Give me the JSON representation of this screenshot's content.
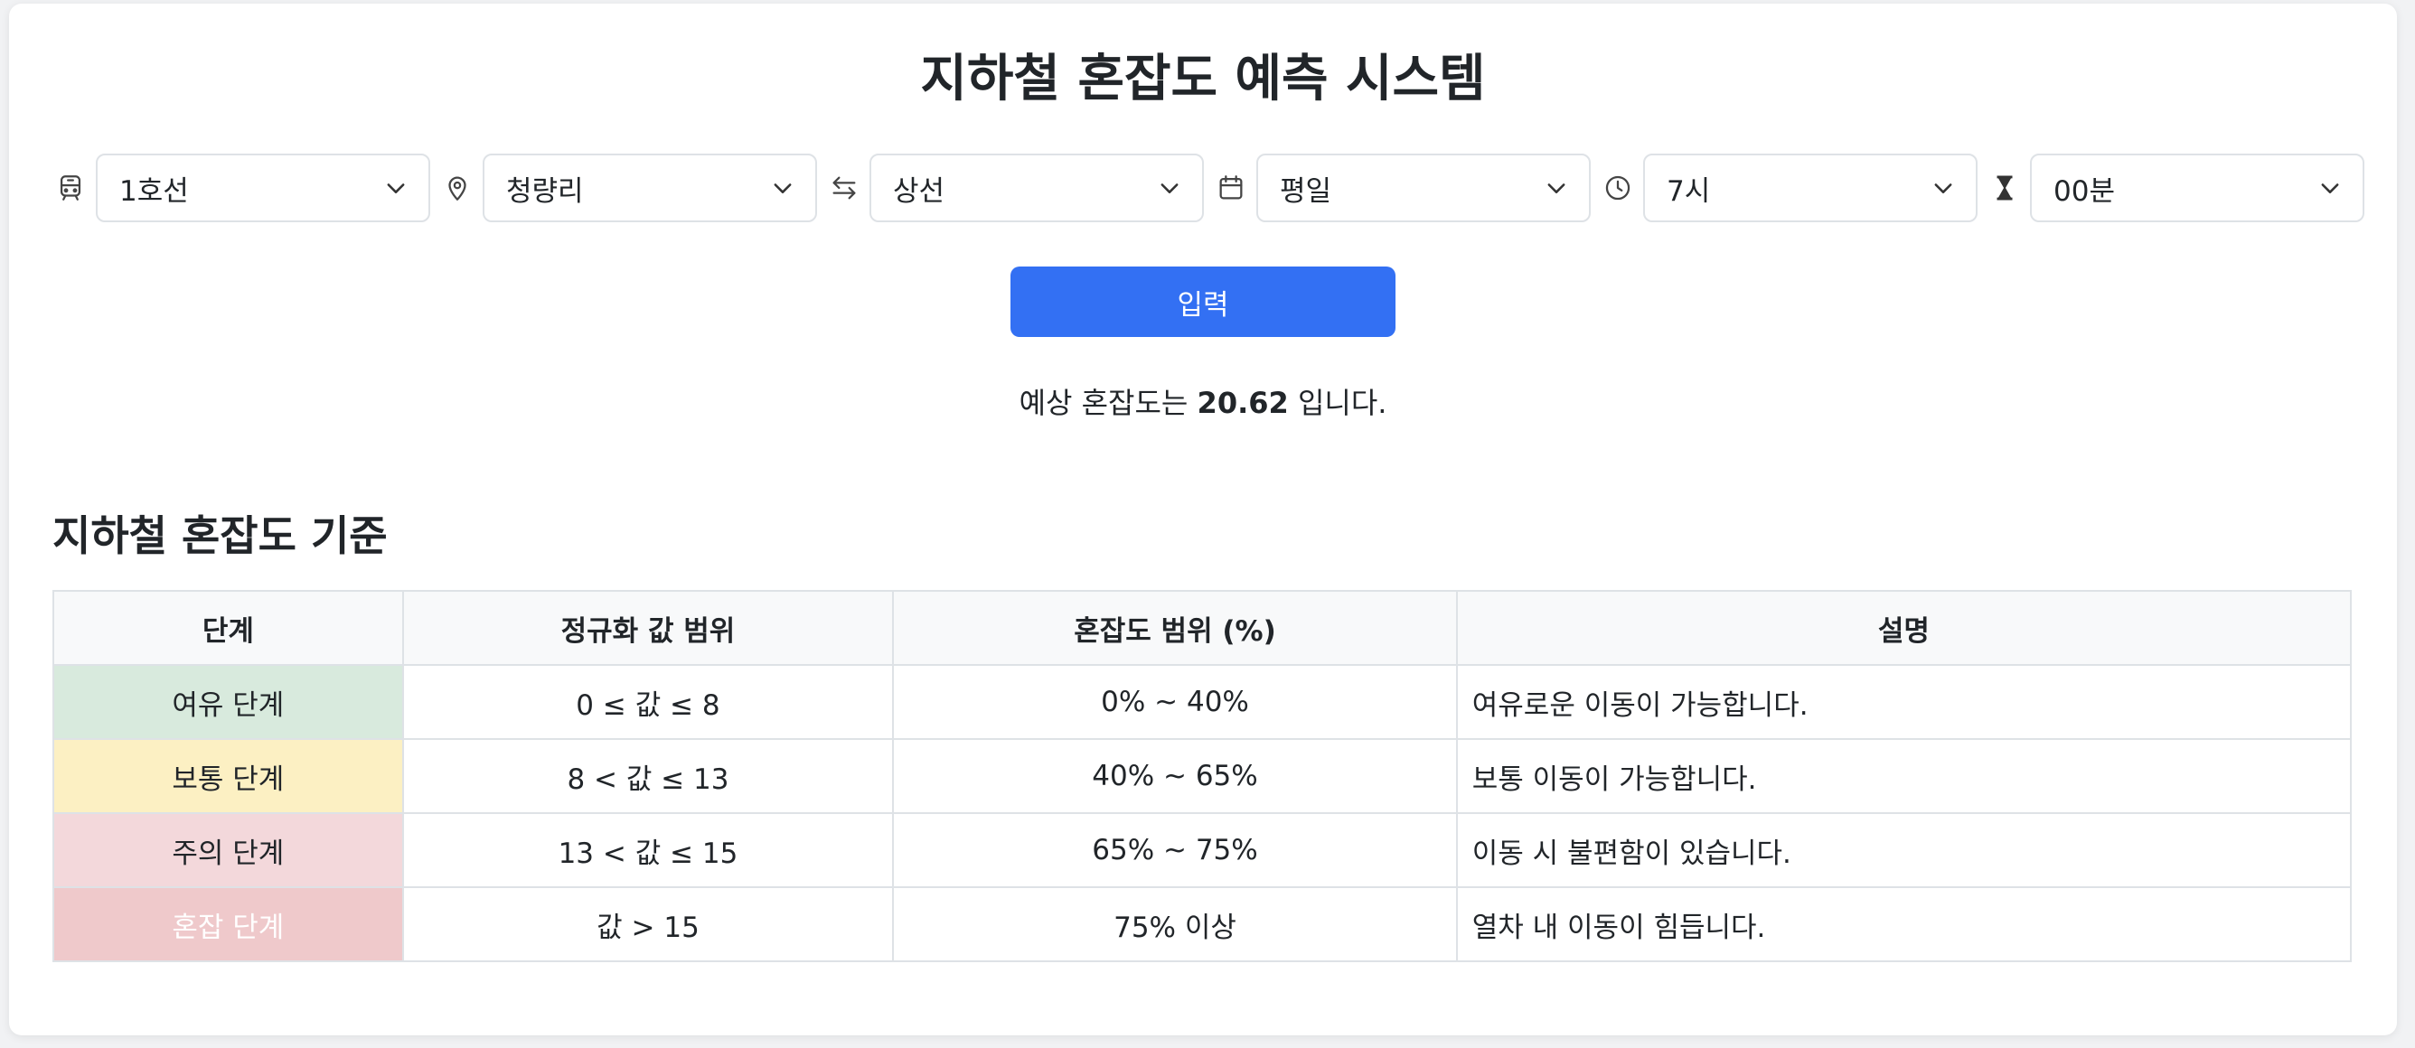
{
  "title": "지하철 혼잡도 예측 시스템",
  "controls": [
    {
      "icon": "train-icon",
      "value": "1호선"
    },
    {
      "icon": "location-pin-icon",
      "value": "청량리"
    },
    {
      "icon": "direction-arrows-icon",
      "value": "상선"
    },
    {
      "icon": "calendar-icon",
      "value": "평일"
    },
    {
      "icon": "clock-icon",
      "value": "7시"
    },
    {
      "icon": "hourglass-icon",
      "value": "00분"
    }
  ],
  "submit_label": "입력",
  "result": {
    "prefix": "예상 혼잡도는",
    "value": "20.62",
    "suffix": "입니다."
  },
  "criteria": {
    "title": "지하철 혼잡도 기준",
    "headers": [
      "단계",
      "정규화 값 범위",
      "혼잡도 범위 (%)",
      "설명"
    ],
    "rows": [
      {
        "level": "여유 단계",
        "range": "0 ≤ 값 ≤ 8",
        "percent": "0% ~ 40%",
        "description": "여유로운 이동이 가능합니다."
      },
      {
        "level": "보통 단계",
        "range": "8 < 값 ≤ 13",
        "percent": "40% ~ 65%",
        "description": "보통 이동이 가능합니다."
      },
      {
        "level": "주의 단계",
        "range": "13 < 값 ≤ 15",
        "percent": "65% ~ 75%",
        "description": "이동 시 불편함이 있습니다."
      },
      {
        "level": "혼잡 단계",
        "range": "값 > 15",
        "percent": "75% 이상",
        "description": "열차 내 이동이 힘듭니다."
      }
    ]
  },
  "colors": {
    "accent": "#3370f3",
    "level_relaxed": "#d8eadd",
    "level_normal": "#fcf0c3",
    "level_caution": "#f3d8db",
    "level_crowded": "#efc9cb"
  }
}
